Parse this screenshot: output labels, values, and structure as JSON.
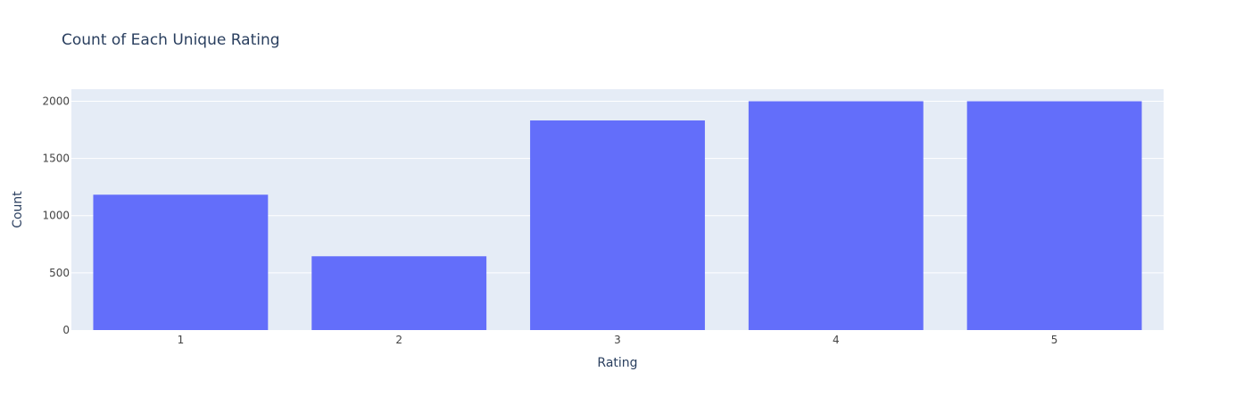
{
  "chart_data": {
    "type": "bar",
    "title": "Count of Each Unique Rating",
    "xlabel": "Rating",
    "ylabel": "Count",
    "categories": [
      "1",
      "2",
      "3",
      "4",
      "5"
    ],
    "values": [
      1183,
      645,
      1832,
      2000,
      2000
    ],
    "ylim": [
      0,
      2105
    ],
    "yticks": [
      0,
      500,
      1000,
      1500,
      2000
    ],
    "ytick_labels": [
      "0",
      "500",
      "1000",
      "1500",
      "2000"
    ],
    "grid": true,
    "colors": {
      "bar": "#636efa",
      "plot_bg": "#e5ecf6",
      "grid": "#ffffff",
      "text": "#2a3f5f",
      "tick_text": "#444444"
    }
  }
}
